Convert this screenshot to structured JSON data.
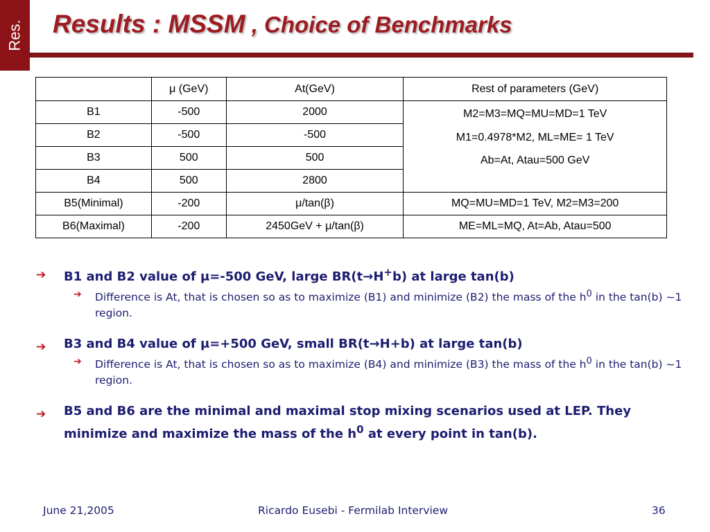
{
  "side_tab": "Res.",
  "title": {
    "part1": "Results : MSSM",
    "part2": " , Choice of Benchmarks"
  },
  "table": {
    "headers": [
      "",
      "μ (GeV)",
      "At(GeV)",
      "Rest of parameters (GeV)"
    ],
    "rows": [
      [
        "B1",
        "-500",
        "2000"
      ],
      [
        "B2",
        "-500",
        "-500"
      ],
      [
        "B3",
        "500",
        "500"
      ],
      [
        "B4",
        "500",
        "2800"
      ],
      [
        "B5(Minimal)",
        "-200",
        "μ/tan(β)"
      ],
      [
        "B6(Maximal)",
        "-200",
        "2450GeV + μ/tan(β)"
      ]
    ],
    "rest_group1": [
      "M2=M3=MQ=MU=MD=1 TeV",
      "M1=0.4978*M2, ML=ME= 1 TeV",
      "Ab=At,  Atau=500 GeV"
    ],
    "rest_b5": "MQ=MU=MD=1 TeV, M2=M3=200",
    "rest_b6": "ME=ML=MQ, At=Ab, Atau=500"
  },
  "bullets": {
    "b1": {
      "main_pre": "B1 and B2 value of ",
      "main_mu": "μ",
      "main_mid": "=-500 GeV, large BR(t",
      "main_arrow": "→",
      "main_h": "H",
      "main_sup": "+",
      "main_post": "b) at large tan(b)",
      "sub_pre": "Difference  is At, that is chosen so as to maximize (B1) and minimize (B2) the mass of the h",
      "sub_sup": "0",
      "sub_post": " in the tan(b) ~1 region."
    },
    "b2": {
      "main_pre": "B3 and B4 value of ",
      "main_mu": "μ",
      "main_mid": "=+500 GeV, small BR(t",
      "main_arrow": "→",
      "main_post": "H+b) at large tan(b)",
      "sub_pre": "Difference is At, that is chosen so as to maximize (B4) and minimize (B3) the mass of the h",
      "sub_sup": "0",
      "sub_post": " in the tan(b) ~1 region."
    },
    "b3": {
      "main_pre": "B5 and B6 are the minimal and maximal stop mixing scenarios used at LEP. They minimize and maximize the mass of the h",
      "main_sup": "0",
      "main_post": " at every point in tan(b)."
    },
    "bullet_glyph": "➔"
  },
  "footer": {
    "date": "June 21,2005",
    "center": "Ricardo Eusebi - Fermilab Interview",
    "page": "36"
  },
  "colors": {
    "accent": "#8c1418",
    "title": "#9c1c22",
    "text": "#1c1c70",
    "bullet": "#c0141c"
  }
}
